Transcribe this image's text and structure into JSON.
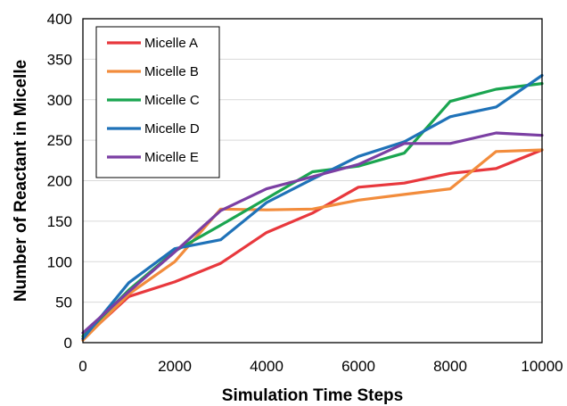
{
  "chart_data": {
    "type": "line",
    "xlabel": "Simulation Time Steps",
    "ylabel": "Number of Reactant in Micelle",
    "xlim": [
      0,
      10000
    ],
    "ylim": [
      0,
      400
    ],
    "xticks": [
      0,
      2000,
      4000,
      6000,
      8000,
      10000
    ],
    "yticks": [
      0,
      50,
      100,
      150,
      200,
      250,
      300,
      350,
      400
    ],
    "grid": "horizontal",
    "legend_position": "top-left",
    "x": [
      0,
      1000,
      2000,
      3000,
      4000,
      5000,
      6000,
      7000,
      8000,
      9000,
      10000
    ],
    "series": [
      {
        "name": "Micelle A",
        "color": "#e8383d",
        "values": [
          5,
          57,
          75,
          98,
          136,
          160,
          192,
          197,
          209,
          215,
          238
        ]
      },
      {
        "name": "Micelle B",
        "color": "#f28c3c",
        "values": [
          3,
          60,
          100,
          165,
          164,
          165,
          176,
          183,
          190,
          236,
          238
        ]
      },
      {
        "name": "Micelle C",
        "color": "#1aa550",
        "values": [
          8,
          65,
          113,
          145,
          178,
          211,
          218,
          234,
          298,
          313,
          320
        ]
      },
      {
        "name": "Micelle D",
        "color": "#1f72b8",
        "values": [
          5,
          74,
          116,
          127,
          173,
          202,
          230,
          248,
          279,
          291,
          330
        ]
      },
      {
        "name": "Micelle E",
        "color": "#7b3fa3",
        "values": [
          12,
          63,
          112,
          163,
          190,
          205,
          220,
          246,
          246,
          259,
          256
        ]
      }
    ]
  }
}
